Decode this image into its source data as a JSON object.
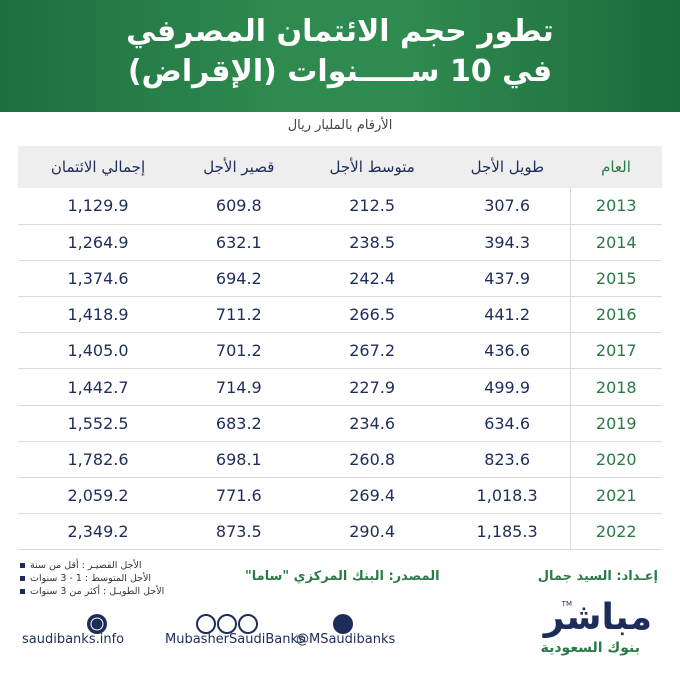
{
  "header": {
    "title_line1": "تطور حجم الائتمان المصرفي",
    "title_line2": "(الإقراض) في 10 ســـــنوات"
  },
  "subtitle": "الأرقام بالمليار ريال",
  "table": {
    "columns": [
      "العام",
      "طويل الأجل",
      "متوسط الأجل",
      "قصير الأجل",
      "إجمالي الائتمان"
    ],
    "rows": [
      [
        "2013",
        "307.6",
        "212.5",
        "609.8",
        "1,129.9"
      ],
      [
        "2014",
        "394.3",
        "238.5",
        "632.1",
        "1,264.9"
      ],
      [
        "2015",
        "437.9",
        "242.4",
        "694.2",
        "1,374.6"
      ],
      [
        "2016",
        "441.2",
        "266.5",
        "711.2",
        "1,418.9"
      ],
      [
        "2017",
        "436.6",
        "267.2",
        "701.2",
        "1,405.0"
      ],
      [
        "2018",
        "499.9",
        "227.9",
        "714.9",
        "1,442.7"
      ],
      [
        "2019",
        "634.6",
        "234.6",
        "683.2",
        "1,552.5"
      ],
      [
        "2020",
        "823.6",
        "260.8",
        "698.1",
        "1,782.6"
      ],
      [
        "2021",
        "1,018.3",
        "269.4",
        "771.6",
        "2,059.2"
      ],
      [
        "2022",
        "1,185.3",
        "290.4",
        "873.5",
        "2,349.2"
      ]
    ]
  },
  "notes": [
    "الأجل القصيـر : أقل من سنة",
    "الأجل المتوسط : 1 - 3 سنوات",
    "الأجل الطويـل : أكثر من 3 سنوات"
  ],
  "source": "المصدر: البنك المركزي \"ساما\"",
  "prepared_by": "إعـداد: السيد جمال",
  "links": {
    "website": "saudibanks.info",
    "social_handle": "MubasherSaudiBanks",
    "twitter": "@MSaudibanks"
  },
  "logo": {
    "name": "مباشر",
    "tagline": "بنوك السعودية",
    "tm": "TM"
  }
}
